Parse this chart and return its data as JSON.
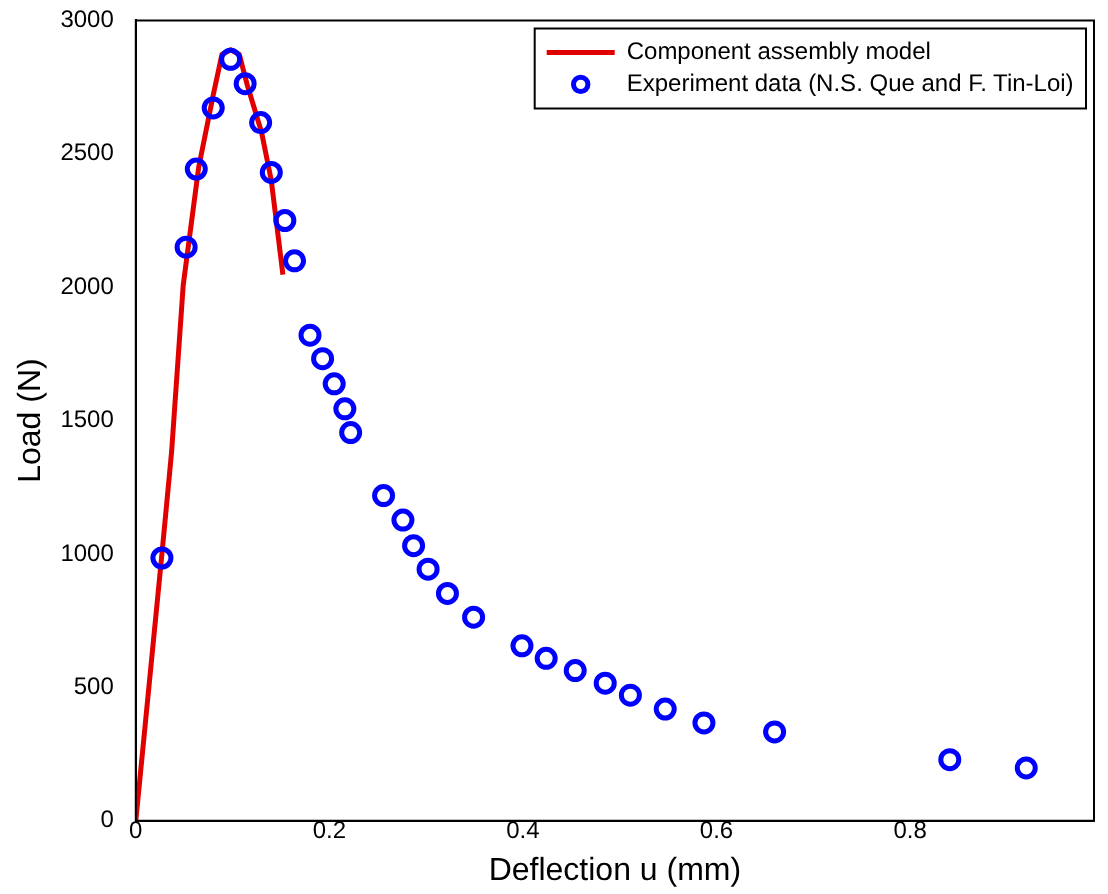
{
  "chart_data": {
    "type": "scatter",
    "xlabel": "Deflection u (mm)",
    "ylabel": "Load (N)",
    "xlim": [
      0,
      0.99
    ],
    "xticks": [
      0,
      0.2,
      0.4,
      0.6,
      0.8
    ],
    "ylim": [
      0,
      3000
    ],
    "yticks": [
      0,
      500,
      1000,
      1500,
      2000,
      2500,
      3000
    ],
    "grid": false,
    "legend": "top right",
    "series": [
      {
        "name": "Component assembly model",
        "type": "line",
        "color": "#e00000",
        "marker": "none",
        "line_style": "solid",
        "x": [
          0,
          0.027,
          0.037,
          0.049,
          0.065,
          0.08,
          0.089,
          0.098,
          0.107,
          0.115,
          0.13,
          0.14,
          0.152
        ],
        "values": [
          0,
          1000,
          1383,
          2008,
          2450,
          2720,
          2872,
          2890,
          2872,
          2760,
          2580,
          2400,
          2047
        ]
      },
      {
        "name": "Experiment data (N.S. Que and F. Tin-Loi)",
        "color": "#0000ff",
        "marker": "circle",
        "x": [
          0.027,
          0.052,
          0.0625,
          0.08,
          0.098,
          0.113,
          0.129,
          0.14,
          0.154,
          0.164,
          0.18,
          0.193,
          0.205,
          0.216,
          0.222,
          0.256,
          0.276,
          0.287,
          0.302,
          0.322,
          0.349,
          0.399,
          0.424,
          0.454,
          0.485,
          0.511,
          0.547,
          0.587,
          0.66,
          0.841,
          0.92
        ],
        "values": [
          985,
          2150,
          2443,
          2672,
          2854,
          2763,
          2617,
          2430,
          2250,
          2099,
          1820,
          1732,
          1638,
          1544,
          1455,
          1219,
          1127,
          1031,
          943,
          852,
          763,
          656,
          609,
          563,
          516,
          471,
          419,
          367,
          333,
          229,
          198
        ]
      }
    ]
  }
}
